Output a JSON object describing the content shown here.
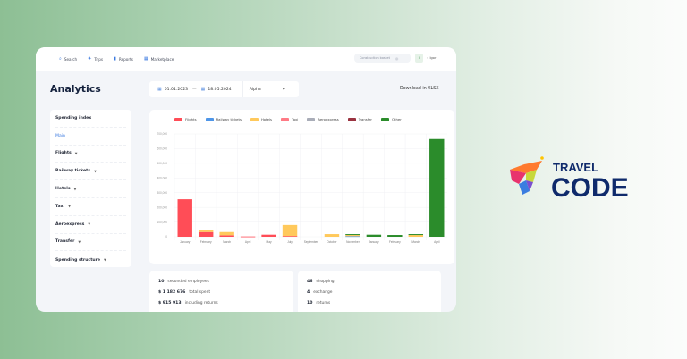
{
  "nav": {
    "items": [
      {
        "label": "Search",
        "icon": "search-icon",
        "glyph": "⌕"
      },
      {
        "label": "Trips",
        "icon": "plane-icon",
        "glyph": "✈"
      },
      {
        "label": "Reports",
        "icon": "document-icon",
        "glyph": "▮"
      },
      {
        "label": "Marketplace",
        "icon": "grid-icon",
        "glyph": "▦"
      }
    ],
    "basket_label": "Construction basket",
    "user_name": "Igor",
    "user_initial": "I"
  },
  "page": {
    "title": "Analytics",
    "date_from": "01.01.2023",
    "date_sep": "—",
    "date_to": "18.05.2024",
    "company_select": "Alpha",
    "download_label": "Download in XLSX"
  },
  "sidebar": {
    "items": [
      {
        "label": "Spending index",
        "has_chevron": false,
        "active": false
      },
      {
        "label": "Main",
        "has_chevron": false,
        "active": true
      },
      {
        "label": "Flights",
        "has_chevron": true,
        "active": false
      },
      {
        "label": "Railway tickets",
        "has_chevron": true,
        "active": false
      },
      {
        "label": "Hotels",
        "has_chevron": true,
        "active": false
      },
      {
        "label": "Taxi",
        "has_chevron": true,
        "active": false
      },
      {
        "label": "Aeroexpress",
        "has_chevron": true,
        "active": false
      },
      {
        "label": "Transfer",
        "has_chevron": true,
        "active": false
      },
      {
        "label": "Spending structure",
        "has_chevron": true,
        "active": false
      }
    ]
  },
  "chart_data": {
    "type": "bar",
    "stacked": true,
    "title": "",
    "xlabel": "",
    "ylabel": "",
    "ylim": [
      0,
      700000
    ],
    "yticks": [
      "0",
      "100,000",
      "200,000",
      "300,000",
      "400,000",
      "500,000",
      "600,000",
      "700,000"
    ],
    "grid": true,
    "legend_position": "top",
    "categories": [
      "January",
      "February",
      "March",
      "April",
      "May",
      "July",
      "September",
      "October",
      "November",
      "January",
      "February",
      "March",
      "April"
    ],
    "series": [
      {
        "name": "Flights",
        "color": "#ff4d57",
        "values": [
          255000,
          32000,
          10000,
          2000,
          14000,
          5000,
          0,
          0,
          0,
          0,
          0,
          0,
          0
        ]
      },
      {
        "name": "Railway tickets",
        "color": "#4f96e8",
        "values": [
          0,
          0,
          0,
          0,
          0,
          0,
          0,
          0,
          4000,
          0,
          0,
          0,
          0
        ]
      },
      {
        "name": "Hotels",
        "color": "#ffc95c",
        "values": [
          0,
          12000,
          22000,
          0,
          0,
          75000,
          0,
          18000,
          8000,
          0,
          0,
          12000,
          0
        ]
      },
      {
        "name": "Taxi",
        "color": "#ff7a85",
        "values": [
          0,
          0,
          0,
          0,
          0,
          0,
          0,
          0,
          0,
          0,
          0,
          0,
          0
        ]
      },
      {
        "name": "Aeroexpress",
        "color": "#a9adb8",
        "values": [
          0,
          0,
          0,
          0,
          0,
          0,
          0,
          0,
          0,
          0,
          0,
          0,
          0
        ]
      },
      {
        "name": "Transfer",
        "color": "#9a3340",
        "values": [
          0,
          0,
          0,
          0,
          0,
          0,
          0,
          0,
          0,
          0,
          0,
          0,
          0
        ]
      },
      {
        "name": "Other",
        "color": "#2b8c2b",
        "values": [
          0,
          0,
          0,
          0,
          0,
          0,
          0,
          0,
          6000,
          14000,
          12000,
          6000,
          665000
        ]
      }
    ]
  },
  "stats_left": [
    {
      "value": "10",
      "label": "seconded employees"
    },
    {
      "value": "$ 1 182 676",
      "label": "total spent"
    },
    {
      "value": "$ 915 913",
      "label": "including returns"
    }
  ],
  "stats_right": [
    {
      "value": "46",
      "label": "shopping"
    },
    {
      "value": "4",
      "label": "exchange"
    },
    {
      "value": "10",
      "label": "returns"
    }
  ],
  "brand": {
    "line1": "TRAVEL",
    "line2": "CODE",
    "color": "#0f2a6b"
  }
}
